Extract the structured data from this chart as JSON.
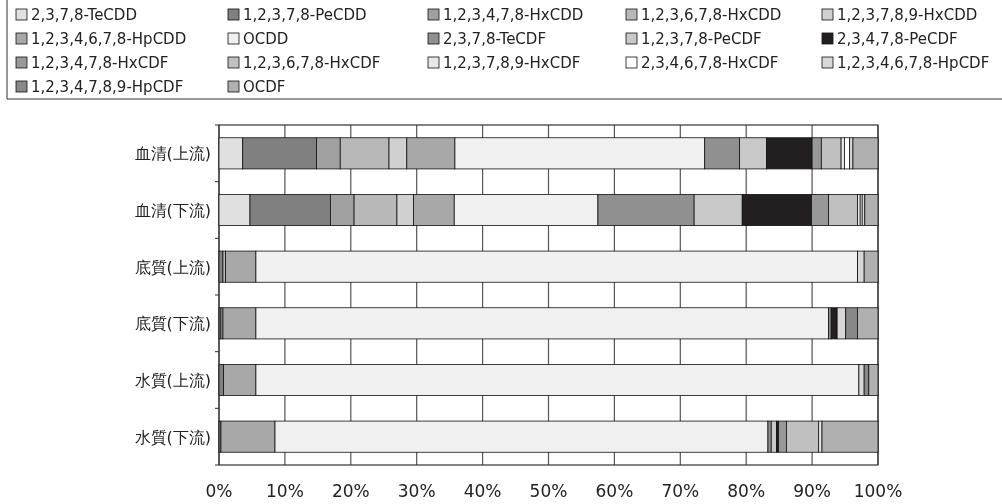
{
  "chart_data": {
    "type": "bar",
    "orientation": "horizontal",
    "stacked": true,
    "legend": "top",
    "grid": "x",
    "categories": [
      "血清(上流)",
      "血清(下流)",
      "底質(上流)",
      "底質(下流)",
      "水質(上流)",
      "水質(下流)"
    ],
    "xlim": [
      0,
      100
    ],
    "xticks": [
      {
        "value": 0,
        "label": "0%"
      },
      {
        "value": 10,
        "label": "10%"
      },
      {
        "value": 20,
        "label": "20%"
      },
      {
        "value": 30,
        "label": "30%"
      },
      {
        "value": 40,
        "label": "40%"
      },
      {
        "value": 50,
        "label": "50%"
      },
      {
        "value": 60,
        "label": "60%"
      },
      {
        "value": 70,
        "label": "70%"
      },
      {
        "value": 80,
        "label": "80%"
      },
      {
        "value": 90,
        "label": "90%"
      },
      {
        "value": 100,
        "label": "100%"
      }
    ],
    "series": [
      {
        "name": "2,3,7,8-TeCDD",
        "color": "#e0e0e0",
        "values": [
          3.6,
          4.7,
          null,
          null,
          null,
          null
        ]
      },
      {
        "name": "1,2,3,7,8-PeCDD",
        "color": "#808080",
        "values": [
          11.2,
          12.2,
          0.6,
          0.3,
          0.7,
          0.3
        ]
      },
      {
        "name": "1,2,3,4,7,8-HxCDD",
        "color": "#a0a0a0",
        "values": [
          3.6,
          3.6,
          null,
          null,
          null,
          null
        ]
      },
      {
        "name": "1,2,3,6,7,8-HxCDD",
        "color": "#b8b8b8",
        "values": [
          7.4,
          6.5,
          0.4,
          0.3,
          null,
          null
        ]
      },
      {
        "name": "1,2,3,7,8,9-HxCDD",
        "color": "#d0d0d0",
        "values": [
          2.7,
          2.5,
          null,
          null,
          null,
          null
        ]
      },
      {
        "name": "1,2,3,4,6,7,8-HpCDD",
        "color": "#a8a8a8",
        "values": [
          7.3,
          6.2,
          4.6,
          5.0,
          4.9,
          8.2
        ]
      },
      {
        "name": "OCDD",
        "color": "#f0f0f0",
        "values": [
          37.9,
          21.8,
          91.3,
          86.9,
          91.5,
          74.8
        ]
      },
      {
        "name": "2,3,7,8-TeCDF",
        "color": "#909090",
        "values": [
          5.3,
          14.6,
          null,
          0.4,
          null,
          0.5
        ]
      },
      {
        "name": "1,2,3,7,8-PeCDF",
        "color": "#c8c8c8",
        "values": [
          4.1,
          7.3,
          null,
          null,
          null,
          0.8
        ]
      },
      {
        "name": "2,3,4,7,8-PeCDF",
        "color": "#231f20",
        "values": [
          6.9,
          10.5,
          null,
          0.9,
          null,
          0.3
        ]
      },
      {
        "name": "1,2,3,4,7,8-HxCDF",
        "color": "#989898",
        "values": [
          1.4,
          2.6,
          null,
          null,
          null,
          1.2
        ]
      },
      {
        "name": "1,2,3,6,7,8-HxCDF",
        "color": "#c0c0c0",
        "values": [
          3.0,
          4.4,
          null,
          null,
          null,
          4.9
        ]
      },
      {
        "name": "1,2,3,7,8,9-HxCDF",
        "color": "#e8e8e8",
        "values": [
          0.5,
          0.4,
          null,
          null,
          null,
          0.5
        ]
      },
      {
        "name": "2,3,4,6,7,8-HxCDF",
        "color": "#ffffff",
        "values": [
          0.8,
          0.3,
          null,
          null,
          null,
          null
        ]
      },
      {
        "name": "1,2,3,4,6,7,8-HpCDF",
        "color": "#d8d8d8",
        "values": [
          0.5,
          0.4,
          1.0,
          1.3,
          0.8,
          null
        ]
      },
      {
        "name": "1,2,3,4,7,8,9-HpCDF",
        "color": "#888888",
        "values": [
          null,
          null,
          null,
          1.8,
          0.7,
          null
        ]
      },
      {
        "name": "OCDF",
        "color": "#b0b0b0",
        "values": [
          3.8,
          2.0,
          2.1,
          3.1,
          1.4,
          8.5
        ]
      }
    ]
  }
}
